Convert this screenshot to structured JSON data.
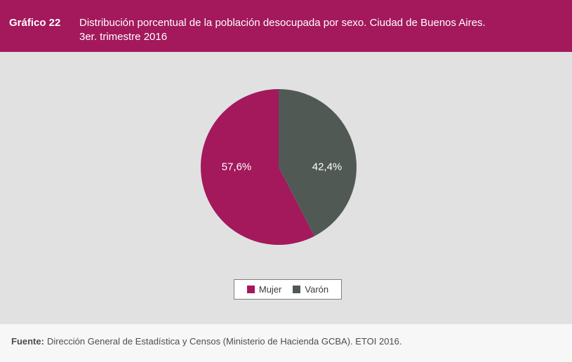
{
  "header": {
    "label": "Gráfico 22",
    "title_line1": "Distribución porcentual de la población desocupada por sexo. Ciudad de Buenos Aires.",
    "title_line2": "3er. trimestre 2016"
  },
  "chart_data": {
    "type": "pie",
    "title": "Distribución porcentual de la población desocupada por sexo. Ciudad de Buenos Aires. 3er. trimestre 2016",
    "slices": [
      {
        "label": "Mujer",
        "value": 57.6,
        "display": "57,6%",
        "color": "#A3195C"
      },
      {
        "label": "Varón",
        "value": 42.4,
        "display": "42,4%",
        "color": "#515955"
      }
    ],
    "start_angle_deg": 0,
    "direction": "counterclockwise",
    "legend_position": "bottom",
    "label_color": "#FFFFFF"
  },
  "footer": {
    "source_bold": "Fuente:",
    "source_text": "Dirección General de Estadística y Censos (Ministerio de Hacienda GCBA). ETOI 2016."
  },
  "colors": {
    "header_bg": "#A3195C",
    "plot_bg": "#E1E1E1",
    "footer_bg": "#F7F7F7",
    "legend_border": "#7F7F7F"
  }
}
